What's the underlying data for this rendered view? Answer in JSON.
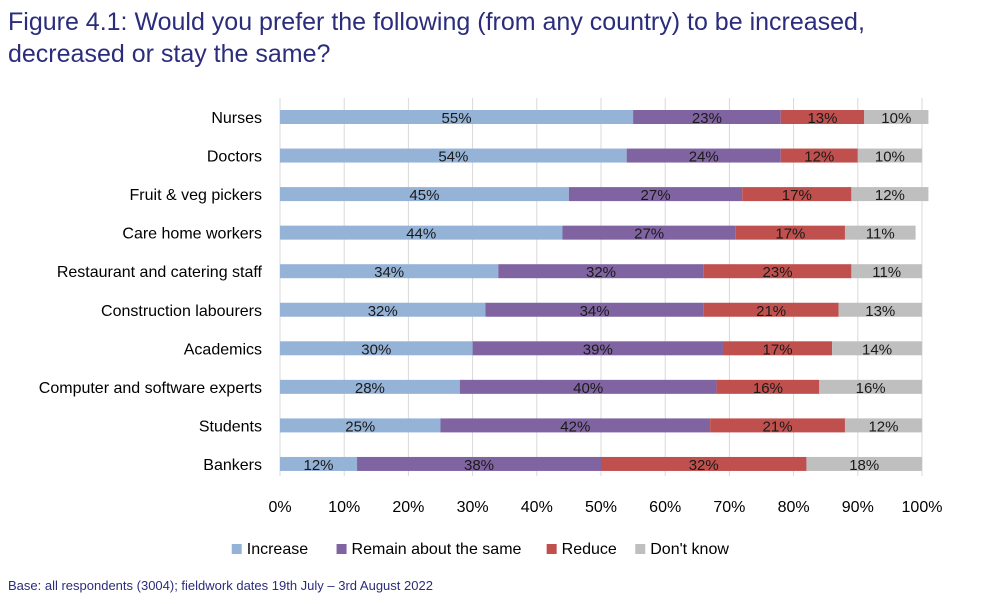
{
  "title": {
    "line1": "Figure 4.1: Would you prefer the following (from any country) to be increased,",
    "line2": "decreased or stay the same?"
  },
  "footer": "Base: all respondents (3004); fieldwork dates 19th July – 3rd August 2022",
  "chart_data": {
    "type": "bar",
    "orientation": "horizontal",
    "stacked": true,
    "categories": [
      "Nurses",
      "Doctors",
      "Fruit & veg pickers",
      "Care home workers",
      "Restaurant and catering staff",
      "Construction labourers",
      "Academics",
      "Computer and software experts",
      "Students",
      "Bankers"
    ],
    "series": [
      {
        "name": "Increase",
        "color": "#95b3d7",
        "values": [
          55,
          54,
          45,
          44,
          34,
          32,
          30,
          28,
          25,
          12
        ]
      },
      {
        "name": "Remain about the same",
        "color": "#8064a2",
        "values": [
          23,
          24,
          27,
          27,
          32,
          34,
          39,
          40,
          42,
          38
        ]
      },
      {
        "name": "Reduce",
        "color": "#c0504d",
        "values": [
          13,
          12,
          17,
          17,
          23,
          21,
          17,
          16,
          21,
          32
        ]
      },
      {
        "name": "Don't know",
        "color": "#bfbfbf",
        "values": [
          10,
          10,
          12,
          11,
          11,
          13,
          14,
          16,
          12,
          18
        ]
      }
    ],
    "xlim": [
      0,
      100
    ],
    "xticks": [
      "0%",
      "10%",
      "20%",
      "30%",
      "40%",
      "50%",
      "60%",
      "70%",
      "80%",
      "90%",
      "100%"
    ],
    "value_suffix": "%",
    "legend_position": "bottom",
    "grid": "vertical"
  }
}
